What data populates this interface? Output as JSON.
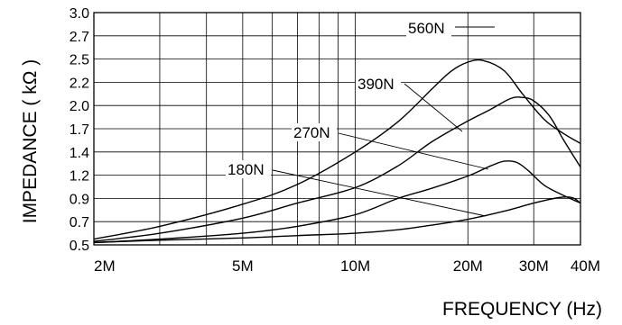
{
  "chart_data": {
    "type": "line",
    "xlabel": "FREQUENCY (Hz)",
    "ylabel": "IMPEDANCE ( kΩ )",
    "x_scale": "log",
    "xlim": [
      2000000,
      40000000
    ],
    "ylim": [
      0.5,
      3.0
    ],
    "x_tick_labels": [
      {
        "value": 2000000,
        "label": "2M"
      },
      {
        "value": 5000000,
        "label": "5M"
      },
      {
        "value": 10000000,
        "label": "10M"
      },
      {
        "value": 20000000,
        "label": "20M"
      },
      {
        "value": 30000000,
        "label": "30M"
      },
      {
        "value": 40000000,
        "label": "40M"
      }
    ],
    "x_gridlines": [
      2000000,
      3000000,
      4000000,
      5000000,
      6000000,
      7000000,
      8000000,
      9000000,
      10000000,
      20000000,
      30000000,
      40000000
    ],
    "y_ticks": [
      0.5,
      0.7,
      0.9,
      1.2,
      1.4,
      1.7,
      2.0,
      2.2,
      2.5,
      2.7,
      3.0
    ],
    "y_tick_labels": [
      "0.5",
      "0.7",
      "0.9",
      "1.2",
      "1.4",
      "1.7",
      "2.0",
      "2.2",
      "2.5",
      "2.7",
      "3.0"
    ],
    "grid": true,
    "series": [
      {
        "name": "560N",
        "x": [
          2000000,
          3000000,
          5000000,
          7000000,
          10000000,
          13000000,
          16000000,
          18000000,
          20000000,
          22000000,
          25000000,
          28000000,
          32000000,
          36000000,
          40000000
        ],
        "y": [
          0.55,
          0.66,
          0.85,
          1.08,
          1.4,
          1.79,
          2.14,
          2.34,
          2.46,
          2.48,
          2.35,
          2.1,
          1.82,
          1.64,
          1.51
        ]
      },
      {
        "name": "390N",
        "x": [
          2000000,
          3000000,
          5000000,
          7000000,
          10000000,
          13000000,
          16000000,
          20000000,
          23000000,
          26000000,
          28000000,
          30000000,
          33000000,
          36000000,
          40000000
        ],
        "y": [
          0.53,
          0.6,
          0.73,
          0.86,
          1.04,
          1.28,
          1.53,
          1.8,
          1.95,
          2.06,
          2.07,
          2.04,
          1.87,
          1.56,
          1.27
        ]
      },
      {
        "name": "270N",
        "x": [
          2000000,
          3000000,
          5000000,
          7000000,
          10000000,
          13000000,
          16000000,
          20000000,
          23000000,
          25000000,
          27000000,
          29000000,
          32000000,
          36000000,
          40000000
        ],
        "y": [
          0.52,
          0.55,
          0.6,
          0.66,
          0.76,
          0.9,
          1.03,
          1.19,
          1.28,
          1.32,
          1.31,
          1.24,
          1.07,
          0.94,
          0.86
        ]
      },
      {
        "name": "180N",
        "x": [
          2000000,
          3000000,
          5000000,
          7000000,
          10000000,
          13000000,
          16000000,
          20000000,
          25000000,
          30000000,
          35000000,
          38000000,
          40000000
        ],
        "y": [
          0.52,
          0.54,
          0.56,
          0.58,
          0.6,
          0.63,
          0.67,
          0.72,
          0.79,
          0.86,
          0.91,
          0.91,
          0.86
        ]
      }
    ],
    "annotations": [
      {
        "text": "560N",
        "series": "560N"
      },
      {
        "text": "390N",
        "series": "390N"
      },
      {
        "text": "270N",
        "series": "270N"
      },
      {
        "text": "180N",
        "series": "180N"
      }
    ]
  }
}
